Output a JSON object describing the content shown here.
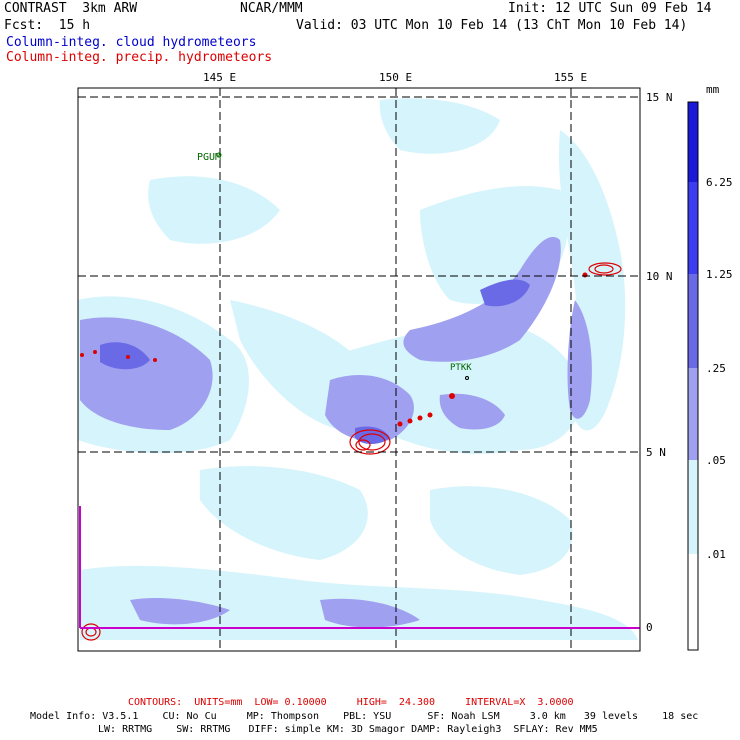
{
  "header": {
    "model": "CONTRAST  3km ARW",
    "org": "NCAR/MMM",
    "init": "Init: 12 UTC Sun 09 Feb 14",
    "fcst": "Fcst:  15 h",
    "valid": "Valid: 03 UTC Mon 10 Feb 14 (13 ChT Mon 10 Feb 14)"
  },
  "legend_lines": {
    "cloud": {
      "text": "Column-integ. cloud hydrometeors",
      "color": "#0000cc"
    },
    "precip": {
      "text": "Column-integ. precip. hydrometeors",
      "color": "#dd0000"
    }
  },
  "axes": {
    "lon_labels": [
      "145 E",
      "150 E",
      "155 E"
    ],
    "lat_labels": [
      "15 N",
      "10 N",
      "5 N",
      "0"
    ]
  },
  "stations": [
    "PGUM",
    "PTKK"
  ],
  "colorbar": {
    "unit": "mm",
    "labels": [
      "6.25",
      "1.25",
      ".25",
      ".05",
      ".01"
    ],
    "colors": [
      "#1a1ad8",
      "#3c3cf0",
      "#6a6ae6",
      "#a0a0f0",
      "#d6f4fb",
      "#ffffff"
    ]
  },
  "footer": {
    "contours": "CONTOURS:  UNITS=mm  LOW= 0.10000     HIGH=  24.300     INTERVAL=X  3.0000",
    "model_info_1": "Model Info: V3.5.1    CU: No Cu     MP: Thompson    PBL: YSU      SF: Noah LSM     3.0 km   39 levels    18 sec",
    "model_info_2": "LW: RRTMG    SW: RRTMG   DIFF: simple KM: 3D Smagor DAMP: Rayleigh3  SFLAY: Rev MM5"
  }
}
